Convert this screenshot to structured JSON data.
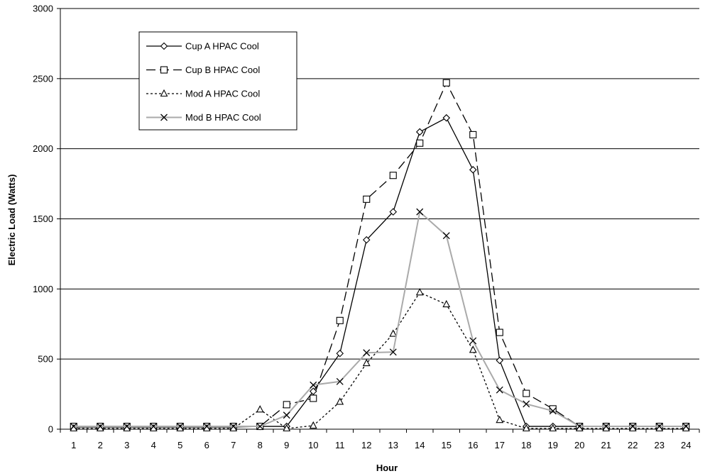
{
  "chart_data": {
    "type": "line",
    "title": "",
    "xlabel": "Hour",
    "ylabel": "Electric Load (Watts)",
    "categories": [
      "1",
      "2",
      "3",
      "4",
      "5",
      "6",
      "7",
      "8",
      "9",
      "10",
      "11",
      "12",
      "13",
      "14",
      "15",
      "16",
      "17",
      "18",
      "19",
      "20",
      "21",
      "22",
      "23",
      "24"
    ],
    "y_ticks": [
      "0",
      "500",
      "1000",
      "1500",
      "2000",
      "2500",
      "3000"
    ],
    "ylim": [
      0,
      3000
    ],
    "grid": "horizontal",
    "legend_position": "top-left",
    "series": [
      {
        "name": "Cup A HPAC Cool",
        "marker": "diamond",
        "line_style": "solid",
        "color": "#000000",
        "values": [
          15,
          15,
          15,
          15,
          15,
          15,
          15,
          20,
          20,
          270,
          540,
          1350,
          1550,
          2120,
          2220,
          1850,
          490,
          20,
          20,
          20,
          20,
          20,
          20,
          20
        ]
      },
      {
        "name": "Cup B HPAC Cool",
        "marker": "square",
        "line_style": "long-dash",
        "color": "#000000",
        "values": [
          20,
          20,
          20,
          20,
          20,
          20,
          20,
          20,
          175,
          220,
          775,
          1640,
          1810,
          2040,
          2470,
          2100,
          690,
          255,
          145,
          20,
          20,
          20,
          20,
          20
        ]
      },
      {
        "name": "Mod A HPAC Cool",
        "marker": "triangle",
        "line_style": "dotted",
        "color": "#000000",
        "values": [
          5,
          5,
          5,
          5,
          5,
          5,
          5,
          140,
          5,
          25,
          195,
          470,
          680,
          975,
          890,
          565,
          65,
          5,
          5,
          5,
          5,
          5,
          5,
          5
        ]
      },
      {
        "name": "Mod B HPAC Cool",
        "marker": "x",
        "line_style": "solid",
        "color": "#aaaaaa",
        "marker_color": "#000000",
        "values": [
          20,
          20,
          20,
          20,
          20,
          20,
          20,
          20,
          100,
          315,
          340,
          545,
          550,
          1550,
          1380,
          630,
          280,
          180,
          130,
          20,
          20,
          20,
          20,
          20
        ]
      }
    ]
  }
}
